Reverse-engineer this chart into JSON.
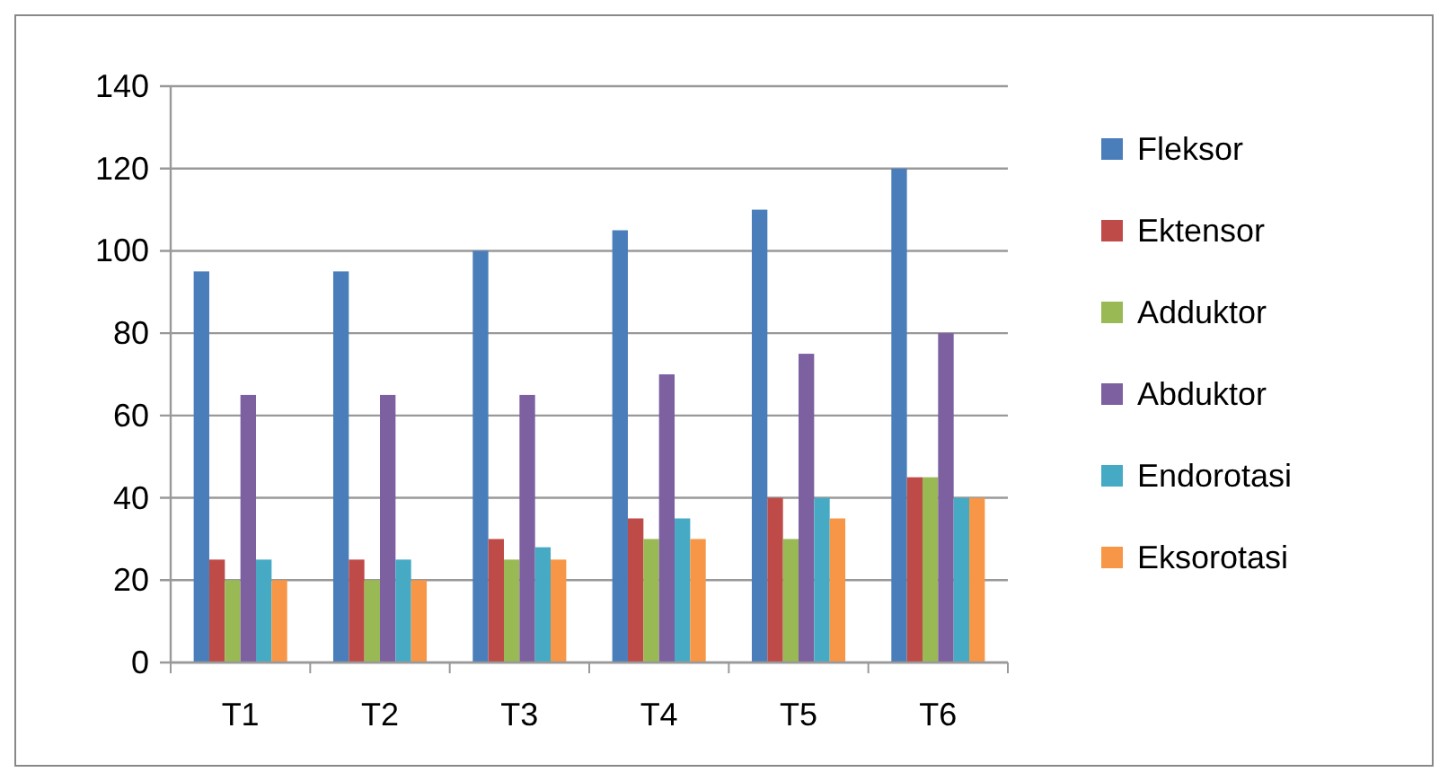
{
  "chart_data": {
    "type": "bar",
    "categories": [
      "T1",
      "T2",
      "T3",
      "T4",
      "T5",
      "T6"
    ],
    "series": [
      {
        "name": "Fleksor",
        "color": "#4a7ebb",
        "values": [
          95,
          95,
          100,
          105,
          110,
          120
        ]
      },
      {
        "name": "Ektensor",
        "color": "#be4b48",
        "values": [
          25,
          25,
          30,
          35,
          40,
          45
        ]
      },
      {
        "name": "Adduktor",
        "color": "#98b954",
        "values": [
          20,
          20,
          25,
          30,
          30,
          45
        ]
      },
      {
        "name": "Abduktor",
        "color": "#7d60a0",
        "values": [
          65,
          65,
          65,
          70,
          75,
          80
        ]
      },
      {
        "name": "Endorotasi",
        "color": "#46aac5",
        "values": [
          25,
          25,
          28,
          35,
          40,
          40
        ]
      },
      {
        "name": "Eksorotasi",
        "color": "#f79646",
        "values": [
          20,
          20,
          25,
          30,
          35,
          40
        ]
      }
    ],
    "ylim": [
      0,
      140
    ],
    "yticks": [
      0,
      20,
      40,
      60,
      80,
      100,
      120,
      140
    ],
    "grid": "y",
    "legend": "right"
  }
}
